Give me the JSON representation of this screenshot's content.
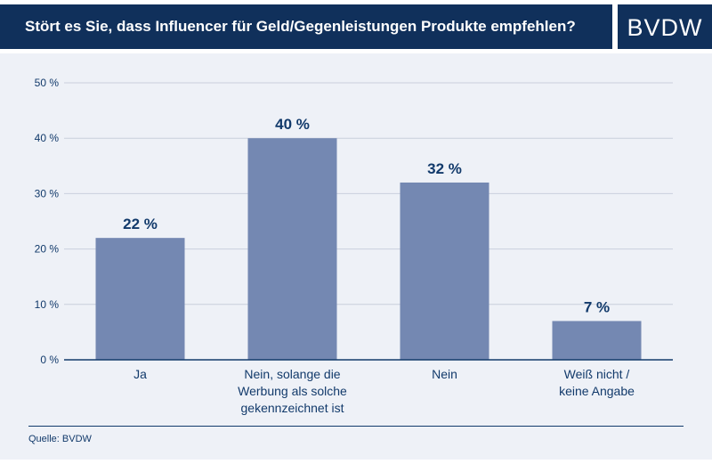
{
  "header": {
    "title": "Stört es Sie, dass Influencer für Geld/Gegenleistungen Produkte empfehlen?",
    "logo": "BVDW"
  },
  "source": "Quelle: BVDW",
  "colors": {
    "brand": "#10305b",
    "bar": "#7488b2",
    "background": "#eef1f7",
    "label": "#123a6b"
  },
  "chart_data": {
    "type": "bar",
    "categories": [
      [
        "Ja"
      ],
      [
        "Nein, solange die",
        "Werbung als solche",
        "gekennzeichnet ist"
      ],
      [
        "Nein"
      ],
      [
        "Weiß nicht /",
        "keine Angabe"
      ]
    ],
    "values": [
      22,
      40,
      32,
      7
    ],
    "value_labels": [
      "22 %",
      "40 %",
      "32 %",
      "7 %"
    ],
    "yticks": [
      0,
      10,
      20,
      30,
      40,
      50
    ],
    "ytick_labels": [
      "0 %",
      "10 %",
      "20 %",
      "30 %",
      "40 %",
      "50 %"
    ],
    "ylim": [
      0,
      50
    ],
    "grid": true,
    "title": "",
    "xlabel": "",
    "ylabel": ""
  }
}
